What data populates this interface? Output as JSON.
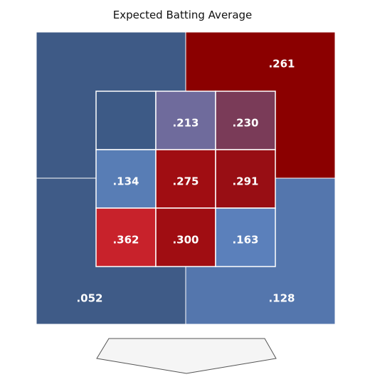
{
  "chart_data": {
    "type": "heatmap",
    "title": "Expected Batting Average",
    "inner_zones": [
      {
        "zone": 1,
        "value": null,
        "label": ""
      },
      {
        "zone": 2,
        "value": 0.213,
        "label": ".213"
      },
      {
        "zone": 3,
        "value": 0.23,
        "label": ".230"
      },
      {
        "zone": 4,
        "value": 0.134,
        "label": ".134"
      },
      {
        "zone": 5,
        "value": 0.275,
        "label": ".275"
      },
      {
        "zone": 6,
        "value": 0.291,
        "label": ".291"
      },
      {
        "zone": 7,
        "value": 0.362,
        "label": ".362"
      },
      {
        "zone": 8,
        "value": 0.3,
        "label": ".300"
      },
      {
        "zone": 9,
        "value": 0.163,
        "label": ".163"
      }
    ],
    "outer_zones": [
      {
        "position": "top-left",
        "value": null,
        "label": ""
      },
      {
        "position": "top-right",
        "value": 0.261,
        "label": ".261"
      },
      {
        "position": "bottom-left",
        "value": 0.052,
        "label": ".052"
      },
      {
        "position": "bottom-right",
        "value": 0.128,
        "label": ".128"
      }
    ]
  },
  "colors": {
    "zone-1": "#3d5a86",
    "zone-2": "#6f6b9c",
    "zone-3": "#7a3b58",
    "zone-4": "#587db5",
    "zone-5": "#a00d12",
    "zone-6": "#980e14",
    "zone-7": "#c8222b",
    "zone-8": "#a00d12",
    "zone-9": "#5b80bb",
    "outer-top-left": "#3e5a86",
    "outer-top-right": "#8b0000",
    "outer-bottom-left": "#3f5b87",
    "outer-bottom-right": "#5476ad",
    "border": "#ffffff",
    "plate-fill": "#f5f5f5",
    "plate-stroke": "#555555"
  }
}
